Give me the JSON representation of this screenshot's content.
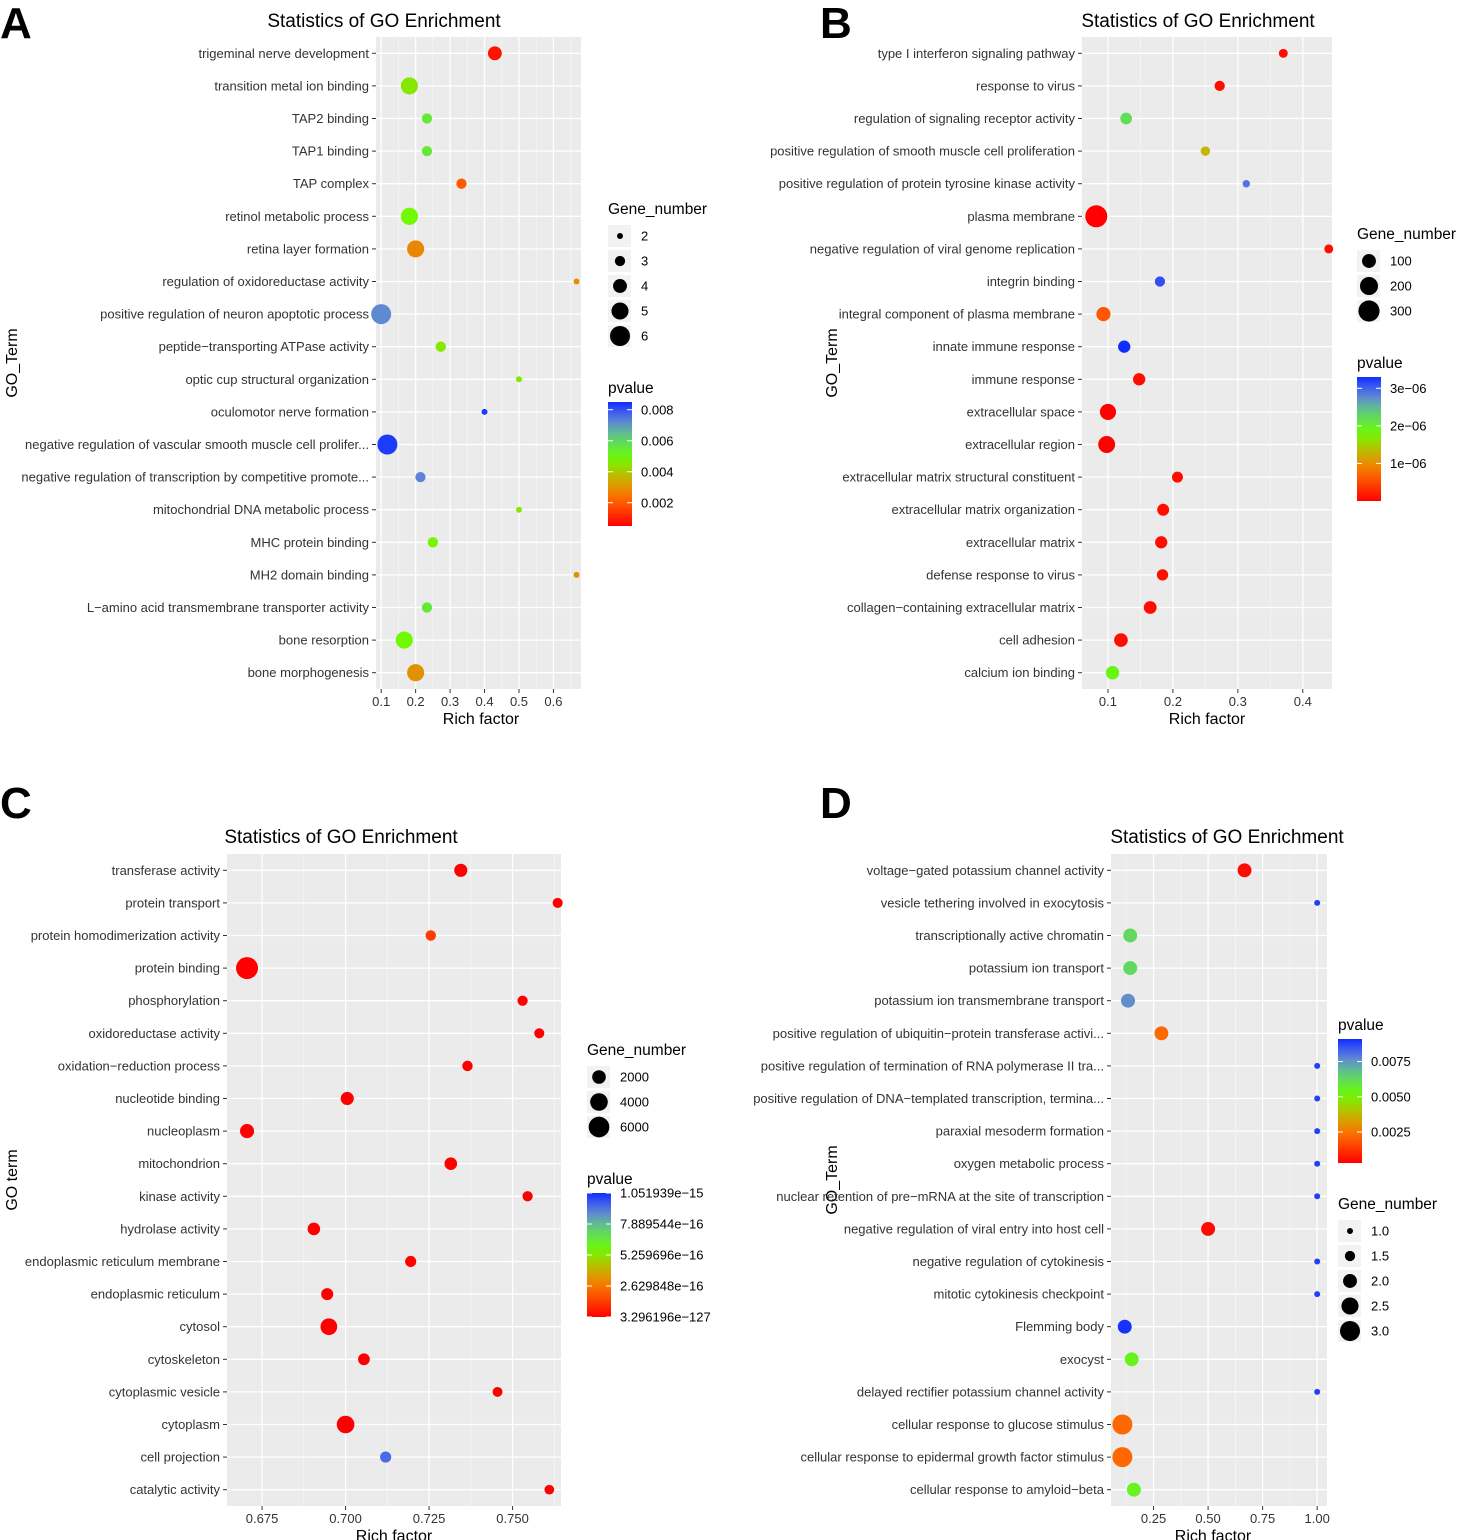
{
  "chart_data": [
    {
      "panel": "A",
      "type": "scatter",
      "title": "Statistics of GO Enrichment",
      "xlabel": "Rich factor",
      "ylabel": "GO_Term",
      "xlim": [
        0.085,
        0.68
      ],
      "xticks": [
        0.1,
        0.2,
        0.3,
        0.4,
        0.5,
        0.6
      ],
      "xtick_labels": [
        "0.1",
        "0.2",
        "0.3",
        "0.4",
        "0.5",
        "0.6"
      ],
      "size_legend": {
        "title": "Gene_number",
        "values": [
          2,
          3,
          4,
          5,
          6
        ],
        "labels": [
          "2",
          "3",
          "4",
          "5",
          "6"
        ]
      },
      "color_legend": {
        "title": "pvalue",
        "range": [
          0.0005,
          0.0085
        ],
        "ticks": [
          0.008,
          0.006,
          0.004,
          0.002
        ],
        "tick_labels": [
          "0.008",
          "0.006",
          "0.004",
          "0.002"
        ]
      },
      "points": [
        {
          "term": "trigeminal nerve development",
          "x": 0.43,
          "gene_number": 4,
          "pvalue": 0.0008
        },
        {
          "term": "transition metal ion binding",
          "x": 0.182,
          "gene_number": 5,
          "pvalue": 0.0045
        },
        {
          "term": "TAP2 binding",
          "x": 0.233,
          "gene_number": 3,
          "pvalue": 0.0055
        },
        {
          "term": "TAP1 binding",
          "x": 0.233,
          "gene_number": 3,
          "pvalue": 0.0055
        },
        {
          "term": "TAP complex",
          "x": 0.333,
          "gene_number": 3,
          "pvalue": 0.002
        },
        {
          "term": "retinol metabolic process",
          "x": 0.182,
          "gene_number": 5,
          "pvalue": 0.0048
        },
        {
          "term": "retina layer formation",
          "x": 0.2,
          "gene_number": 5,
          "pvalue": 0.0028
        },
        {
          "term": "regulation of oxidoreductase activity",
          "x": 0.667,
          "gene_number": 2,
          "pvalue": 0.003
        },
        {
          "term": "positive regulation of neuron apoptotic process",
          "x": 0.1,
          "gene_number": 6,
          "pvalue": 0.0072
        },
        {
          "term": "peptide−transporting ATPase activity",
          "x": 0.273,
          "gene_number": 3,
          "pvalue": 0.0045
        },
        {
          "term": "optic cup structural organization",
          "x": 0.5,
          "gene_number": 2,
          "pvalue": 0.0045
        },
        {
          "term": "oculomotor nerve formation",
          "x": 0.4,
          "gene_number": 2,
          "pvalue": 0.0083
        },
        {
          "term": "negative regulation of vascular smooth muscle cell prolifer...",
          "x": 0.118,
          "gene_number": 6,
          "pvalue": 0.0083
        },
        {
          "term": "negative regulation of transcription by competitive promote...",
          "x": 0.214,
          "gene_number": 3,
          "pvalue": 0.0073
        },
        {
          "term": "mitochondrial DNA metabolic process",
          "x": 0.5,
          "gene_number": 2,
          "pvalue": 0.0045
        },
        {
          "term": "MHC protein binding",
          "x": 0.25,
          "gene_number": 3,
          "pvalue": 0.0047
        },
        {
          "term": "MH2 domain binding",
          "x": 0.667,
          "gene_number": 2,
          "pvalue": 0.003
        },
        {
          "term": "L−amino acid transmembrane transporter activity",
          "x": 0.233,
          "gene_number": 3,
          "pvalue": 0.0055
        },
        {
          "term": "bone resorption",
          "x": 0.167,
          "gene_number": 5,
          "pvalue": 0.0048
        },
        {
          "term": "bone morphogenesis",
          "x": 0.2,
          "gene_number": 5,
          "pvalue": 0.003
        }
      ]
    },
    {
      "panel": "B",
      "type": "scatter",
      "title": "Statistics of GO Enrichment",
      "xlabel": "Rich factor",
      "ylabel": "GO_Term",
      "xlim": [
        0.06,
        0.445
      ],
      "xticks": [
        0.1,
        0.2,
        0.3,
        0.4
      ],
      "xtick_labels": [
        "0.1",
        "0.2",
        "0.3",
        "0.4"
      ],
      "size_legend": {
        "title": "Gene_number",
        "values": [
          100,
          200,
          300
        ],
        "labels": [
          "100",
          "200",
          "300"
        ]
      },
      "color_legend": {
        "title": "pvalue",
        "range": [
          0.0,
          3.3e-06
        ],
        "ticks": [
          3e-06,
          2e-06,
          1e-06
        ],
        "tick_labels": [
          "3e−06",
          "2e−06",
          "1e−06"
        ]
      },
      "points": [
        {
          "term": "type I interferon signaling pathway",
          "x": 0.37,
          "gene_number": 25,
          "pvalue": 1e-07
        },
        {
          "term": "response to virus",
          "x": 0.272,
          "gene_number": 40,
          "pvalue": 1e-07
        },
        {
          "term": "regulation of signaling receptor activity",
          "x": 0.128,
          "gene_number": 60,
          "pvalue": 2.2e-06
        },
        {
          "term": "positive regulation of smooth muscle cell proliferation",
          "x": 0.25,
          "gene_number": 30,
          "pvalue": 1.3e-06
        },
        {
          "term": "positive regulation of protein tyrosine kinase activity",
          "x": 0.313,
          "gene_number": 12,
          "pvalue": 2.9e-06
        },
        {
          "term": "plasma membrane",
          "x": 0.082,
          "gene_number": 330,
          "pvalue": 1e-08
        },
        {
          "term": "negative regulation of viral genome replication",
          "x": 0.44,
          "gene_number": 25,
          "pvalue": 1e-07
        },
        {
          "term": "integrin binding",
          "x": 0.18,
          "gene_number": 40,
          "pvalue": 3.1e-06
        },
        {
          "term": "integral component of plasma membrane",
          "x": 0.093,
          "gene_number": 105,
          "pvalue": 6e-07
        },
        {
          "term": "innate immune response",
          "x": 0.125,
          "gene_number": 70,
          "pvalue": 3.3e-06
        },
        {
          "term": "immune response",
          "x": 0.148,
          "gene_number": 70,
          "pvalue": 1e-07
        },
        {
          "term": "extracellular space",
          "x": 0.1,
          "gene_number": 150,
          "pvalue": 1e-08
        },
        {
          "term": "extracellular region",
          "x": 0.098,
          "gene_number": 170,
          "pvalue": 1e-08
        },
        {
          "term": "extracellular matrix structural constituent",
          "x": 0.207,
          "gene_number": 50,
          "pvalue": 1e-07
        },
        {
          "term": "extracellular matrix organization",
          "x": 0.185,
          "gene_number": 65,
          "pvalue": 1e-07
        },
        {
          "term": "extracellular matrix",
          "x": 0.182,
          "gene_number": 70,
          "pvalue": 1e-07
        },
        {
          "term": "defense response to virus",
          "x": 0.184,
          "gene_number": 55,
          "pvalue": 1e-07
        },
        {
          "term": "collagen−containing extracellular matrix",
          "x": 0.165,
          "gene_number": 80,
          "pvalue": 1e-07
        },
        {
          "term": "cell adhesion",
          "x": 0.12,
          "gene_number": 95,
          "pvalue": 1e-07
        },
        {
          "term": "calcium ion binding",
          "x": 0.107,
          "gene_number": 90,
          "pvalue": 1.9e-06
        }
      ]
    },
    {
      "panel": "C",
      "type": "scatter",
      "title": "Statistics of GO Enrichment",
      "xlabel": "Rich factor",
      "ylabel": "GO term",
      "xlim": [
        0.6645,
        0.7645
      ],
      "xticks": [
        0.675,
        0.7,
        0.725,
        0.75
      ],
      "xtick_labels": [
        "0.675",
        "0.700",
        "0.725",
        "0.750"
      ],
      "size_legend": {
        "title": "Gene_number",
        "values": [
          2000,
          4000,
          6000
        ],
        "labels": [
          "2000",
          "4000",
          "6000"
        ]
      },
      "color_legend": {
        "title": "pvalue",
        "range": [
          3.296196e-127,
          1.051939e-15
        ],
        "ticks": [
          1.051939e-15,
          7.889544e-16,
          5.259696e-16,
          2.629848e-16,
          3.296196e-127
        ],
        "tick_labels": [
          "1.051939e−15",
          "7.889544e−16",
          "5.259696e−16",
          "2.629848e−16",
          "3.296196e−127"
        ]
      },
      "points": [
        {
          "term": "transferase activity",
          "x": 0.7345,
          "gene_number": 1800,
          "pvalue": 1e-60
        },
        {
          "term": "protein transport",
          "x": 0.7635,
          "gene_number": 800,
          "pvalue": 1e-40
        },
        {
          "term": "protein homodimerization activity",
          "x": 0.7255,
          "gene_number": 900,
          "pvalue": 1.3e-16
        },
        {
          "term": "protein binding",
          "x": 0.6705,
          "gene_number": 7000,
          "pvalue": 1e-120
        },
        {
          "term": "phosphorylation",
          "x": 0.753,
          "gene_number": 850,
          "pvalue": 1e-30
        },
        {
          "term": "oxidoreductase activity",
          "x": 0.758,
          "gene_number": 800,
          "pvalue": 1e-30
        },
        {
          "term": "oxidation−reduction process",
          "x": 0.7365,
          "gene_number": 900,
          "pvalue": 1e-30
        },
        {
          "term": "nucleotide binding",
          "x": 0.7005,
          "gene_number": 1800,
          "pvalue": 1e-70
        },
        {
          "term": "nucleoplasm",
          "x": 0.6705,
          "gene_number": 2200,
          "pvalue": 1e-80
        },
        {
          "term": "mitochondrion",
          "x": 0.7315,
          "gene_number": 1600,
          "pvalue": 1e-50
        },
        {
          "term": "kinase activity",
          "x": 0.7545,
          "gene_number": 850,
          "pvalue": 1e-30
        },
        {
          "term": "hydrolase activity",
          "x": 0.6905,
          "gene_number": 1600,
          "pvalue": 1e-60
        },
        {
          "term": "endoplasmic reticulum membrane",
          "x": 0.7195,
          "gene_number": 1100,
          "pvalue": 1e-40
        },
        {
          "term": "endoplasmic reticulum",
          "x": 0.6945,
          "gene_number": 1400,
          "pvalue": 1e-50
        },
        {
          "term": "cytosol",
          "x": 0.695,
          "gene_number": 3500,
          "pvalue": 1e-100
        },
        {
          "term": "cytoskeleton",
          "x": 0.7055,
          "gene_number": 1300,
          "pvalue": 1e-40
        },
        {
          "term": "cytoplasmic vesicle",
          "x": 0.7455,
          "gene_number": 750,
          "pvalue": 1e-30
        },
        {
          "term": "cytoplasm",
          "x": 0.7,
          "gene_number": 4000,
          "pvalue": 1e-110
        },
        {
          "term": "cell projection",
          "x": 0.712,
          "gene_number": 1100,
          "pvalue": 9.4e-16
        },
        {
          "term": "catalytic activity",
          "x": 0.761,
          "gene_number": 700,
          "pvalue": 1e-30
        }
      ]
    },
    {
      "panel": "D",
      "type": "scatter",
      "title": "Statistics of GO Enrichment",
      "xlabel": "Rich factor",
      "ylabel": "GO_Term",
      "xlim": [
        0.055,
        1.045
      ],
      "xticks": [
        0.25,
        0.5,
        0.75,
        1.0
      ],
      "xtick_labels": [
        "0.25",
        "0.50",
        "0.75",
        "1.00"
      ],
      "size_legend": {
        "title": "Gene_number",
        "values": [
          1.0,
          1.5,
          2.0,
          2.5,
          3.0
        ],
        "labels": [
          "1.0",
          "1.5",
          "2.0",
          "2.5",
          "3.0"
        ]
      },
      "color_legend": {
        "title": "pvalue",
        "range": [
          0.0003,
          0.0091
        ],
        "ticks": [
          0.0075,
          0.005,
          0.0025
        ],
        "tick_labels": [
          "0.0075",
          "0.0050",
          "0.0025"
        ]
      },
      "points": [
        {
          "term": "voltage−gated potassium channel activity",
          "x": 0.667,
          "gene_number": 2,
          "pvalue": 0.0005
        },
        {
          "term": "vesicle tethering involved in exocytosis",
          "x": 1.0,
          "gene_number": 1,
          "pvalue": 0.0088
        },
        {
          "term": "transcriptionally active chromatin",
          "x": 0.143,
          "gene_number": 2,
          "pvalue": 0.0063
        },
        {
          "term": "potassium ion transport",
          "x": 0.143,
          "gene_number": 2,
          "pvalue": 0.0063
        },
        {
          "term": "potassium ion transmembrane transport",
          "x": 0.133,
          "gene_number": 2,
          "pvalue": 0.0076
        },
        {
          "term": "positive regulation of ubiquitin−protein transferase activi...",
          "x": 0.286,
          "gene_number": 2,
          "pvalue": 0.0022
        },
        {
          "term": "positive regulation of termination of RNA polymerase II tra...",
          "x": 1.0,
          "gene_number": 1,
          "pvalue": 0.0088
        },
        {
          "term": "positive regulation of DNA−templated transcription, termina...",
          "x": 1.0,
          "gene_number": 1,
          "pvalue": 0.0088
        },
        {
          "term": "paraxial mesoderm formation",
          "x": 1.0,
          "gene_number": 1,
          "pvalue": 0.0088
        },
        {
          "term": "oxygen metabolic process",
          "x": 1.0,
          "gene_number": 1,
          "pvalue": 0.0088
        },
        {
          "term": "nuclear retention of pre−mRNA at the site of transcription",
          "x": 1.0,
          "gene_number": 1,
          "pvalue": 0.0088
        },
        {
          "term": "negative regulation of viral entry into host cell",
          "x": 0.5,
          "gene_number": 2,
          "pvalue": 0.0005
        },
        {
          "term": "negative regulation of cytokinesis",
          "x": 1.0,
          "gene_number": 1,
          "pvalue": 0.0088
        },
        {
          "term": "mitotic cytokinesis checkpoint",
          "x": 1.0,
          "gene_number": 1,
          "pvalue": 0.0088
        },
        {
          "term": "Flemming body",
          "x": 0.118,
          "gene_number": 2,
          "pvalue": 0.009
        },
        {
          "term": "exocyst",
          "x": 0.15,
          "gene_number": 2,
          "pvalue": 0.0055
        },
        {
          "term": "delayed rectifier potassium channel activity",
          "x": 1.0,
          "gene_number": 1,
          "pvalue": 0.0088
        },
        {
          "term": "cellular response to glucose stimulus",
          "x": 0.107,
          "gene_number": 3,
          "pvalue": 0.0022
        },
        {
          "term": "cellular response to epidermal growth factor stimulus",
          "x": 0.107,
          "gene_number": 3,
          "pvalue": 0.0022
        },
        {
          "term": "cellular response to amyloid−beta",
          "x": 0.16,
          "gene_number": 2,
          "pvalue": 0.0055
        }
      ]
    }
  ]
}
